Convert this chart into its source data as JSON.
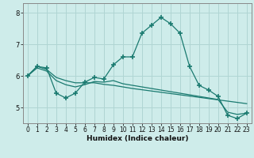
{
  "xlabel": "Humidex (Indice chaleur)",
  "background_color": "#ceecea",
  "grid_color": "#b0d5d3",
  "line_color": "#1a7a70",
  "x_values": [
    0,
    1,
    2,
    3,
    4,
    5,
    6,
    7,
    8,
    9,
    10,
    11,
    12,
    13,
    14,
    15,
    16,
    17,
    18,
    19,
    20,
    21,
    22,
    23
  ],
  "series1": [
    6.0,
    6.3,
    6.25,
    5.45,
    5.3,
    5.45,
    5.8,
    5.95,
    5.9,
    6.35,
    6.6,
    6.6,
    7.35,
    7.6,
    7.85,
    7.65,
    7.35,
    6.3,
    5.7,
    5.55,
    5.35,
    4.75,
    4.65,
    4.82
  ],
  "series2": [
    6.0,
    6.3,
    6.2,
    5.95,
    5.85,
    5.78,
    5.78,
    5.78,
    5.73,
    5.7,
    5.65,
    5.6,
    5.56,
    5.52,
    5.48,
    5.44,
    5.4,
    5.36,
    5.32,
    5.28,
    5.24,
    5.2,
    5.16,
    5.12
  ],
  "series3": [
    6.0,
    6.25,
    6.15,
    5.85,
    5.72,
    5.65,
    5.72,
    5.82,
    5.8,
    5.85,
    5.75,
    5.7,
    5.65,
    5.6,
    5.55,
    5.5,
    5.45,
    5.4,
    5.35,
    5.3,
    5.25,
    4.85,
    4.78,
    4.82
  ],
  "ylim": [
    4.5,
    8.3
  ],
  "yticks": [
    5,
    6,
    7,
    8
  ],
  "xticks": [
    0,
    1,
    2,
    3,
    4,
    5,
    6,
    7,
    8,
    9,
    10,
    11,
    12,
    13,
    14,
    15,
    16,
    17,
    18,
    19,
    20,
    21,
    22,
    23
  ],
  "tick_fontsize": 5.5,
  "xlabel_fontsize": 6.5
}
